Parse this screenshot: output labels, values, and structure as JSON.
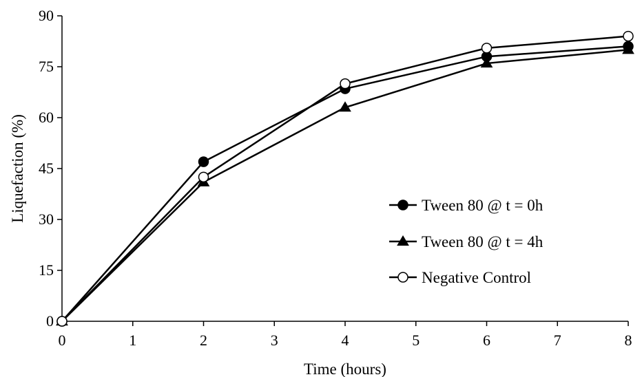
{
  "chart_data": {
    "type": "line",
    "title": "",
    "xlabel": "Time (hours)",
    "ylabel": "Liquefaction (%)",
    "xlim": [
      0,
      8
    ],
    "ylim": [
      0,
      90
    ],
    "x_ticks": [
      "0",
      "1",
      "2",
      "3",
      "4",
      "5",
      "6",
      "7",
      "8"
    ],
    "y_ticks": [
      "0",
      "15",
      "30",
      "45",
      "60",
      "75",
      "90"
    ],
    "grid": false,
    "legend_position": "right",
    "x": [
      0,
      2,
      4,
      6,
      8
    ],
    "series": [
      {
        "name": "Tween 80 @ t = 0h",
        "marker": "filled-circle",
        "values": [
          0,
          47,
          68.5,
          78,
          81
        ]
      },
      {
        "name": "Tween 80 @ t = 4h",
        "marker": "filled-triangle",
        "values": [
          0,
          41,
          63,
          76,
          80
        ]
      },
      {
        "name": "Negative Control",
        "marker": "open-circle",
        "values": [
          0,
          42.5,
          70,
          80.5,
          84
        ]
      }
    ],
    "colors": {
      "line": "#000000",
      "open_marker_fill": "#ffffff"
    }
  }
}
